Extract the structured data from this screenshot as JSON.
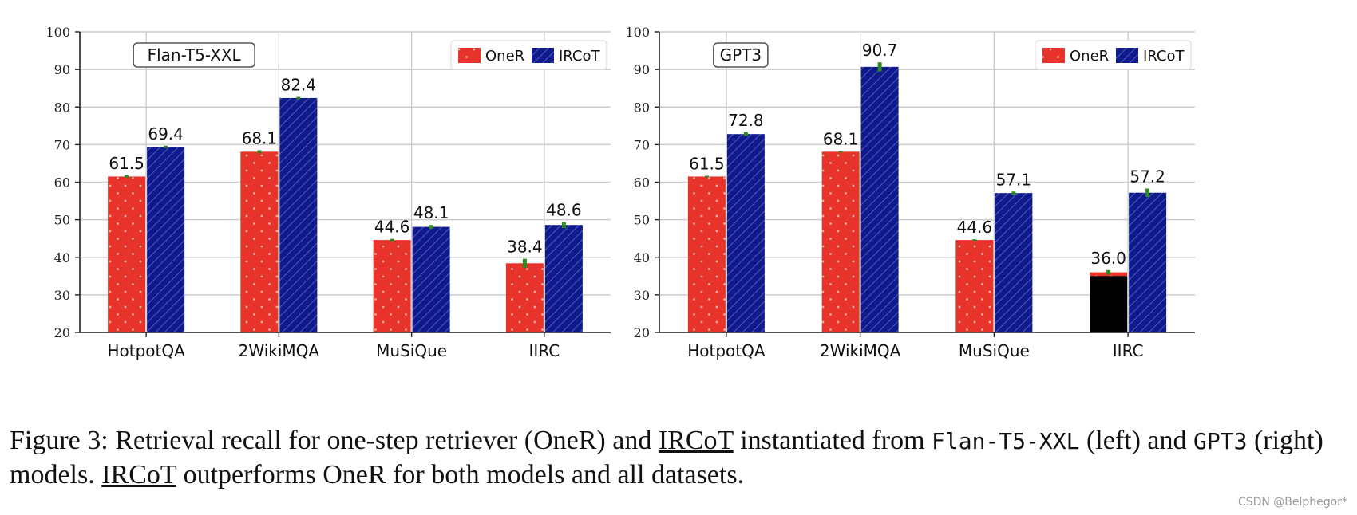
{
  "chart_data": [
    {
      "type": "bar",
      "title": "Flan-T5-XXL",
      "categories": [
        "HotpotQA",
        "2WikiMQA",
        "MuSiQue",
        "IIRC"
      ],
      "series": [
        {
          "name": "OneR",
          "values": [
            61.5,
            68.1,
            44.6,
            38.4
          ],
          "labels": [
            "61.5",
            "68.1",
            "44.6",
            "38.4"
          ],
          "errors": [
            0.3,
            0.4,
            0.3,
            1.2
          ],
          "color": "#e8332a"
        },
        {
          "name": "IRCoT",
          "values": [
            69.4,
            82.4,
            48.1,
            48.6
          ],
          "labels": [
            "69.4",
            "82.4",
            "48.1",
            "48.6"
          ],
          "errors": [
            0.3,
            0.3,
            0.5,
            0.8
          ],
          "color": "#0f1a8c"
        }
      ],
      "ylim": [
        20,
        100
      ],
      "yticks": [
        20,
        30,
        40,
        50,
        60,
        70,
        80,
        90,
        100
      ],
      "grid": true,
      "legend": "top-right",
      "title_position": "top-left"
    },
    {
      "type": "bar",
      "title": "GPT3",
      "categories": [
        "HotpotQA",
        "2WikiMQA",
        "MuSiQue",
        "IIRC"
      ],
      "series": [
        {
          "name": "OneR",
          "values": [
            61.5,
            68.1,
            44.6,
            36.0
          ],
          "labels": [
            "61.5",
            "68.1",
            "44.6",
            "36.0"
          ],
          "errors": [
            0.2,
            0.2,
            0.2,
            0.6
          ],
          "color": "#e8332a"
        },
        {
          "name": "IRCoT",
          "values": [
            72.8,
            90.7,
            57.1,
            57.2
          ],
          "labels": [
            "72.8",
            "90.7",
            "57.1",
            "57.2"
          ],
          "errors": [
            0.5,
            1.2,
            0.4,
            1.1
          ],
          "color": "#0f1a8c"
        }
      ],
      "ylim": [
        20,
        100
      ],
      "yticks": [
        20,
        30,
        40,
        50,
        60,
        70,
        80,
        90,
        100
      ],
      "grid": true,
      "legend": "top-right",
      "title_position": "top-left",
      "overlay": {
        "category": "IIRC",
        "series": "OneR",
        "value": 35.0,
        "color": "#000000"
      }
    }
  ],
  "caption": {
    "p1": "Figure 3: Retrieval recall for one-step retriever (OneR) and ",
    "u1": "IRCoT",
    "p2": " instantiated from ",
    "m1": "Flan-T5-XXL",
    "p3": " (left) and ",
    "m2": "GPT3",
    "p4": " (right) models. ",
    "u2": "IRCoT",
    "p5": " outperforms OneR for both models and all datasets."
  },
  "watermark": "CSDN @Belphegor*"
}
